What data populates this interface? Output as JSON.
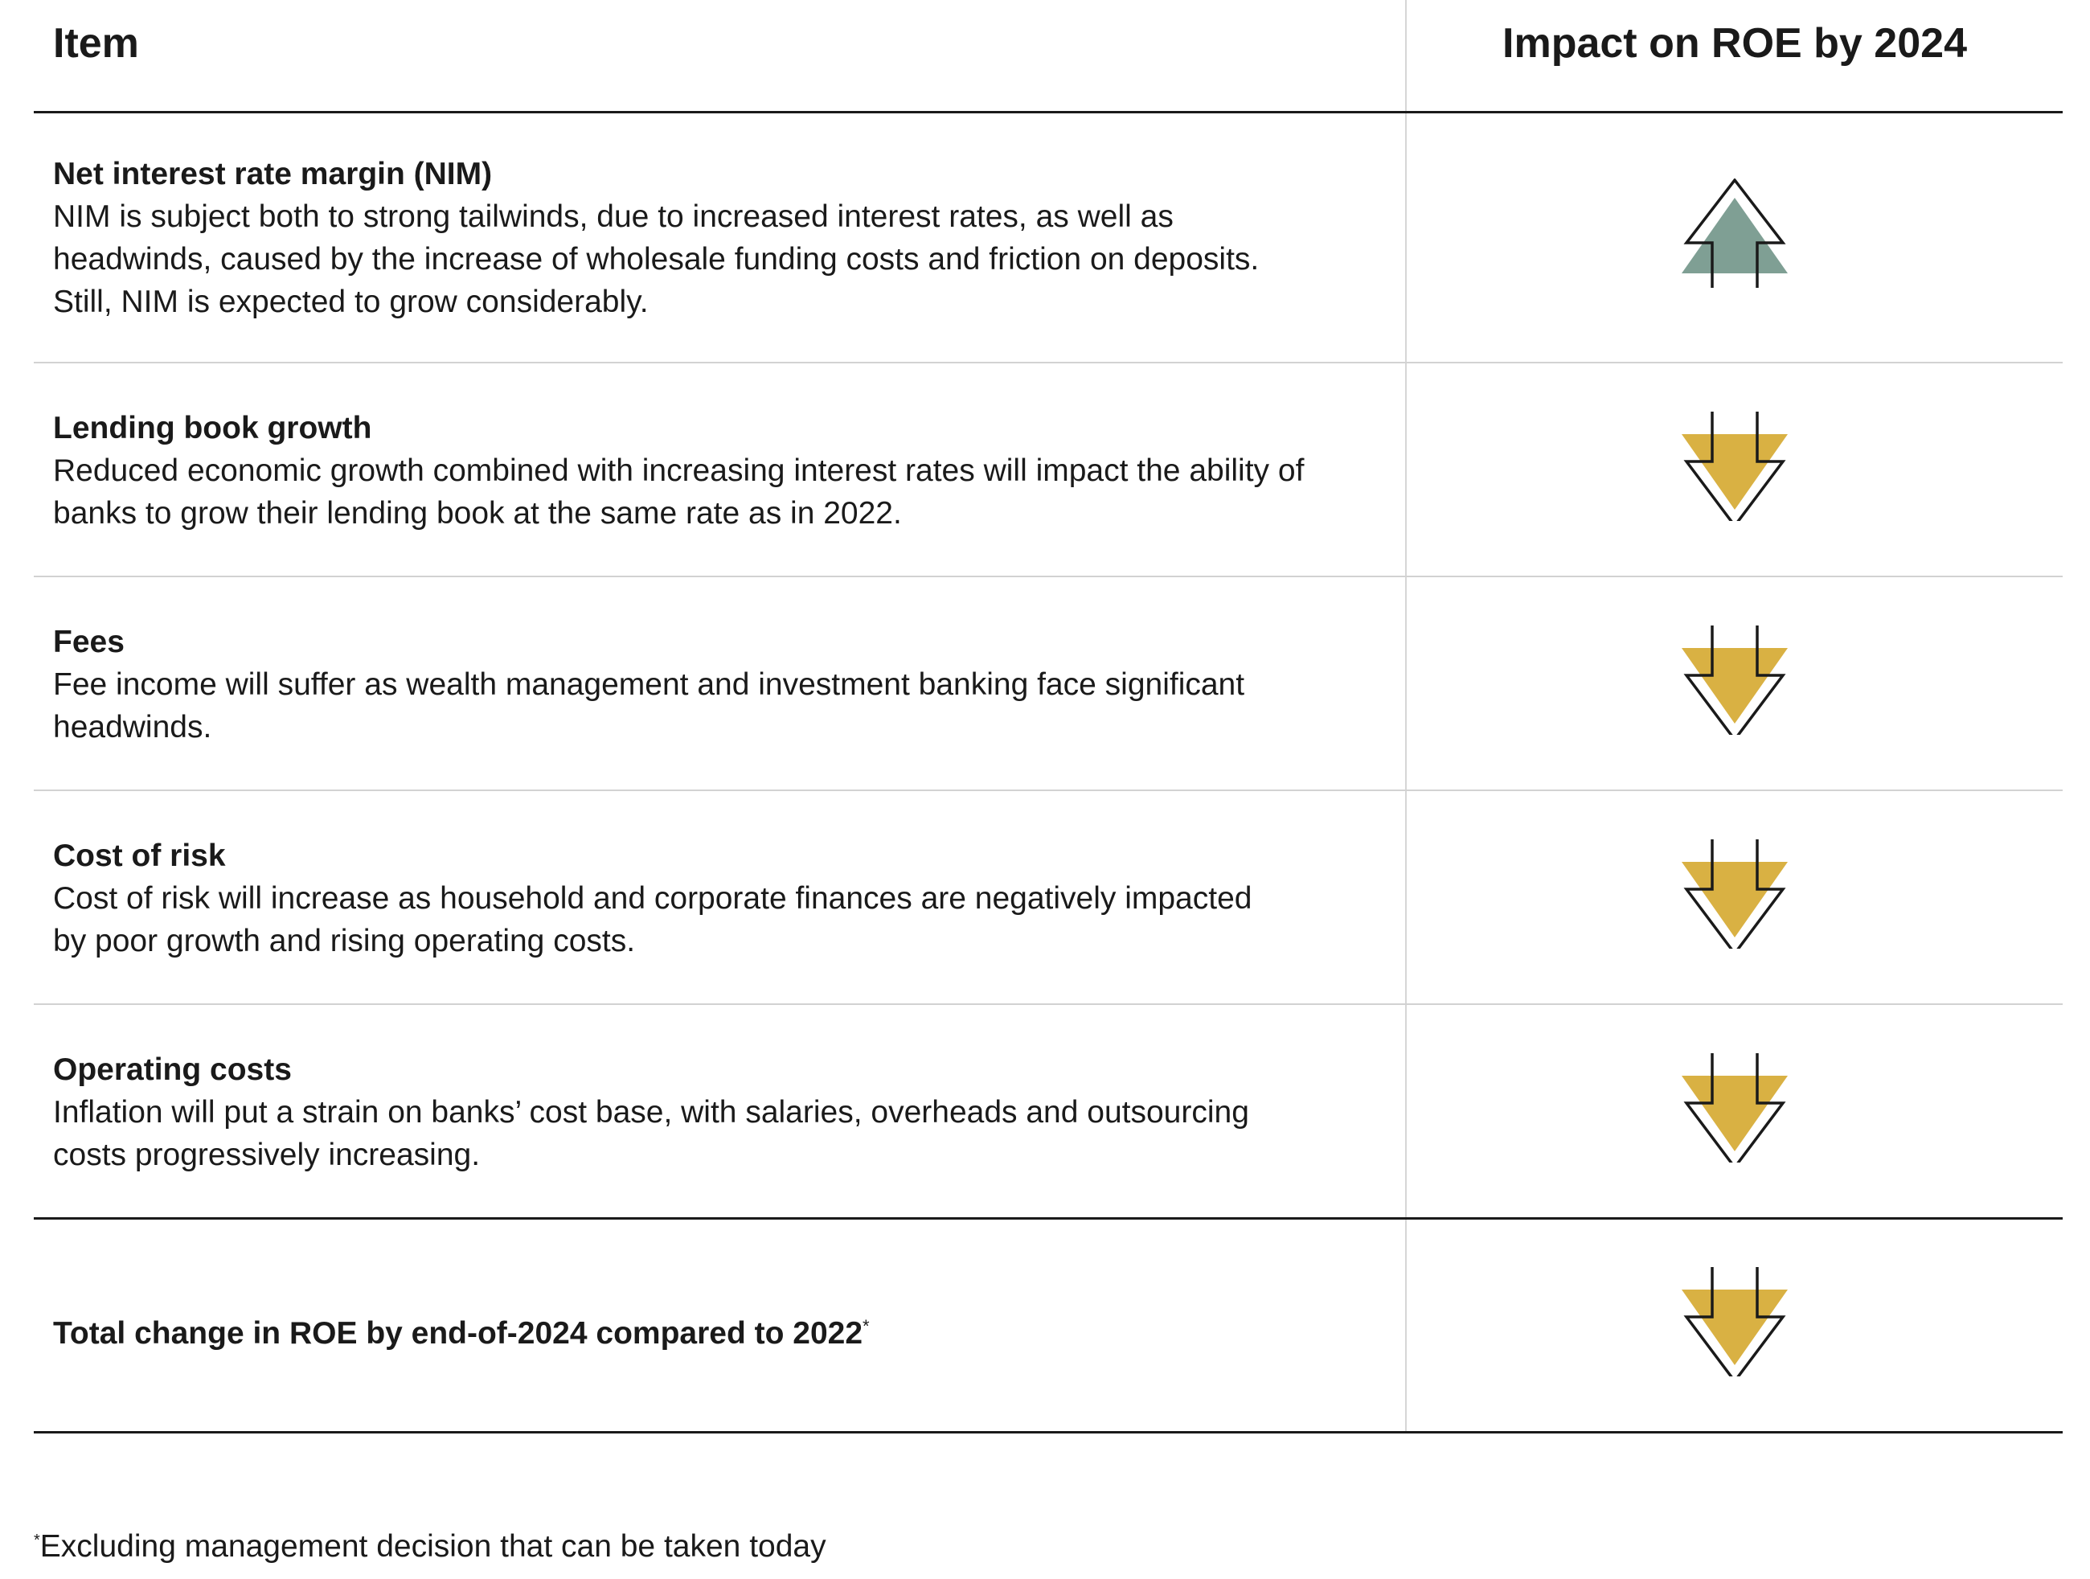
{
  "header": {
    "item_label": "Item",
    "impact_label": "Impact on ROE by 2024"
  },
  "rows": [
    {
      "title": "Net interest rate margin (NIM)",
      "description": "NIM is subject both to strong tailwinds, due to increased interest rates, as well as headwinds, caused by the increase of wholesale funding costs and friction on deposits. Still, NIM is expected to grow considerably.",
      "impact": "up"
    },
    {
      "title": "Lending book growth",
      "description": "Reduced economic growth combined with increasing interest rates will impact the ability of banks to grow their lending book at the same rate as in 2022.",
      "impact": "down"
    },
    {
      "title": "Fees",
      "description": "Fee income will suffer as wealth management and investment banking face significant headwinds.",
      "impact": "down"
    },
    {
      "title": "Cost of risk",
      "description": "Cost of risk will increase as household and corporate finances are negatively impacted by poor growth and rising operating costs.",
      "impact": "down"
    },
    {
      "title": "Operating costs",
      "description": "Inflation will put a strain on banks’ cost base, with salaries, overheads and outsourcing costs progressively increasing.",
      "impact": "down"
    }
  ],
  "total": {
    "title": "Total change in ROE by end-of-2024 compared to 2022",
    "marker": "*",
    "impact": "down"
  },
  "footnote": {
    "marker": "*",
    "text": "Excluding management decision that can be taken today"
  },
  "colors": {
    "up_fill": "#7f9f94",
    "down_fill": "#d9b143",
    "outline": "#1a1a1a",
    "rule_strong": "#1a1a1a",
    "rule_light": "#d2d2d2"
  }
}
